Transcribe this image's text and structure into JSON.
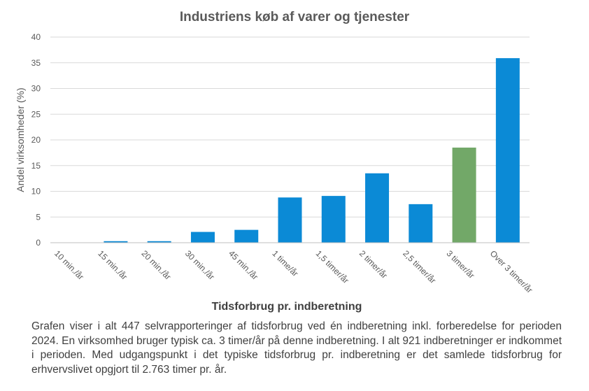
{
  "chart_data": {
    "type": "bar",
    "title": "Industriens køb af varer og tjenester",
    "xlabel": "Tidsforbrug pr. indberetning",
    "ylabel": "Andel virksomheder  (%)",
    "categories": [
      "10 min./år",
      "15 min./år",
      "20 min./år",
      "30 min./år",
      "45 min./år",
      "1 time/år",
      "1,5 timer/år",
      "2 timer/år",
      "2,5 timer/år",
      "3 timer/år",
      "Over 3 timer/år"
    ],
    "values": [
      0,
      0.3,
      0.3,
      2.1,
      2.5,
      8.8,
      9.1,
      13.5,
      7.5,
      18.5,
      35.9
    ],
    "ylim": [
      0,
      40
    ],
    "yticks": [
      0,
      5,
      10,
      15,
      20,
      25,
      30,
      35,
      40
    ],
    "grid": true,
    "legend": "none",
    "colors": {
      "default": "#0b8ad6",
      "highlight": "#72a868",
      "highlight_category": "3 timer/år"
    }
  },
  "caption": "Grafen viser i alt 447 selvrapporteringer af tidsforbrug ved én indberetning inkl. forberedelse for perioden 2024. En virksomhed bruger typisk ca. 3 timer/år på denne indberetning. I alt 921 indberetninger er indkommet i perioden. Med udgangspunkt i det typiske tidsforbrug pr. indberetning er det samlede tidsforbrug for erhvervslivet opgjort til 2.763 timer pr. år."
}
